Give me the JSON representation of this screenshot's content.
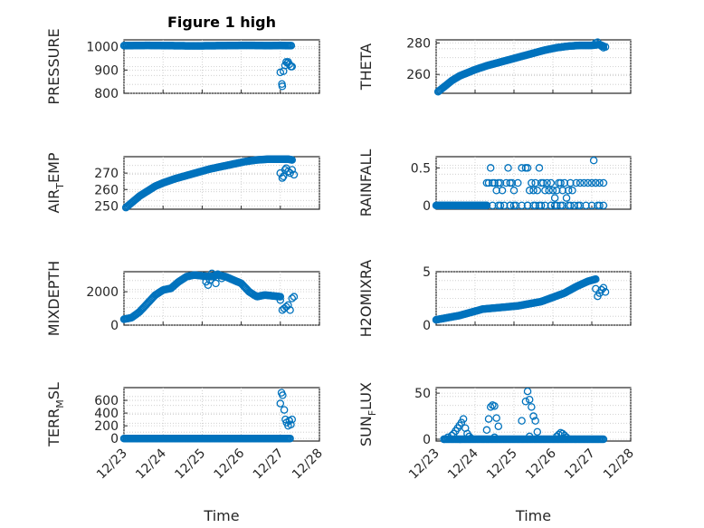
{
  "chart_data": [
    {
      "id": "pressure",
      "type": "scatter",
      "title": "Figure 1 high",
      "ylabel_main": "PRESSURE",
      "ylabel_sub": "",
      "ylim": [
        800,
        1030
      ],
      "yticks": [
        800,
        900,
        1000
      ],
      "xlim": [
        0,
        5
      ],
      "xlabel": "",
      "color": "#0072BD",
      "segments": [
        {
          "x": [
            0,
            0.6,
            1.2,
            1.8,
            2.4,
            3.0,
            3.3,
            3.7,
            4.0,
            4.2,
            4.28
          ],
          "y": [
            1005,
            1006,
            1005,
            1004,
            1005,
            1006,
            1006,
            1005,
            1006,
            1005,
            1005
          ],
          "n": 150
        }
      ],
      "points": {
        "x": [
          4.0,
          4.04,
          4.05,
          4.08,
          4.12,
          4.15,
          4.18,
          4.2,
          4.23,
          4.27,
          4.3
        ],
        "y": [
          890,
          840,
          830,
          895,
          920,
          935,
          930,
          935,
          925,
          915,
          915
        ]
      }
    },
    {
      "id": "theta",
      "type": "scatter",
      "title": "",
      "ylabel_main": "THETA",
      "ylabel_sub": "",
      "ylim": [
        248,
        282
      ],
      "yticks": [
        260,
        280
      ],
      "xlim": [
        0,
        5
      ],
      "xlabel": "",
      "color": "#0072BD",
      "segments": [
        {
          "x": [
            0.05,
            0.2,
            0.4,
            0.6,
            0.8,
            1.0,
            1.3,
            1.6,
            1.9,
            2.2,
            2.5,
            2.8,
            3.1,
            3.4,
            3.7,
            4.0,
            4.2,
            4.3
          ],
          "y": [
            249,
            252,
            256,
            259,
            261,
            263,
            265.5,
            267.5,
            269.5,
            271.5,
            273.5,
            275.5,
            277,
            278,
            278.5,
            278.5,
            279,
            278
          ],
          "n": 170
        }
      ],
      "points": {
        "x": [
          4.1,
          4.15,
          4.2,
          4.25,
          4.3,
          4.35
        ],
        "y": [
          280,
          280.5,
          279,
          278,
          277,
          277.5
        ]
      }
    },
    {
      "id": "airtemp",
      "type": "scatter",
      "title": "",
      "ylabel_main": "AIR",
      "ylabel_sub": "T",
      "ylabel_tail": "EMP",
      "ylim": [
        248,
        280
      ],
      "yticks": [
        250,
        260,
        270
      ],
      "xlim": [
        0,
        5
      ],
      "xlabel": "",
      "color": "#0072BD",
      "segments": [
        {
          "x": [
            0.05,
            0.2,
            0.4,
            0.6,
            0.8,
            1.0,
            1.3,
            1.6,
            1.9,
            2.2,
            2.5,
            2.8,
            3.1,
            3.4,
            3.7,
            4.0,
            4.2,
            4.3
          ],
          "y": [
            249,
            252,
            256,
            259,
            262,
            264,
            266.5,
            268.5,
            270.5,
            272.5,
            274,
            275.5,
            277,
            278,
            278.5,
            278.5,
            278.5,
            278
          ],
          "n": 170
        }
      ],
      "points": {
        "x": [
          4.0,
          4.05,
          4.08,
          4.12,
          4.15,
          4.2,
          4.25,
          4.3,
          4.35
        ],
        "y": [
          270,
          267,
          268,
          272,
          273,
          271,
          270,
          272,
          269
        ]
      }
    },
    {
      "id": "rainfall",
      "type": "scatter",
      "title": "",
      "ylabel_main": "RAINFALL",
      "ylabel_sub": "",
      "ylim": [
        -0.05,
        0.65
      ],
      "yticks": [
        0,
        0.5
      ],
      "xlim": [
        0,
        5
      ],
      "xlabel": "",
      "color": "#0072BD",
      "segments": [
        {
          "x": [
            0,
            1.3
          ],
          "y": [
            0,
            0
          ],
          "n": 60
        },
        {
          "x": [
            1.3,
            4.3
          ],
          "y": [
            0,
            0
          ],
          "n": 20
        }
      ],
      "points": {
        "x": [
          1.3,
          1.35,
          1.4,
          1.45,
          1.5,
          1.55,
          1.6,
          1.65,
          1.7,
          1.8,
          1.85,
          1.9,
          1.95,
          2.0,
          2.1,
          2.2,
          2.3,
          2.35,
          2.4,
          2.45,
          2.5,
          2.55,
          2.6,
          2.65,
          2.7,
          2.75,
          2.8,
          2.85,
          2.9,
          2.95,
          3.0,
          3.05,
          3.1,
          3.15,
          3.2,
          3.25,
          3.3,
          3.35,
          3.4,
          3.45,
          3.5,
          3.6,
          3.7,
          3.8,
          3.9,
          4.0,
          4.1,
          4.2,
          4.3,
          1.65,
          2.0,
          2.35,
          2.7,
          2.95,
          3.2,
          3.45,
          1.9,
          2.55,
          3.05,
          3.65,
          4.05,
          4.1,
          4.2
        ],
        "y": [
          0.3,
          0.3,
          0.5,
          0.3,
          0.3,
          0.2,
          0.3,
          0.3,
          0.2,
          0.3,
          0.5,
          0.3,
          0.3,
          0.2,
          0.3,
          0.5,
          0.5,
          0.5,
          0.2,
          0.3,
          0.2,
          0.3,
          0.2,
          0.5,
          0.3,
          0.3,
          0.2,
          0.3,
          0.2,
          0.3,
          0.2,
          0.1,
          0.2,
          0.3,
          0.3,
          0.2,
          0.3,
          0.1,
          0.2,
          0.3,
          0.2,
          0.3,
          0.3,
          0.3,
          0.3,
          0.3,
          0.3,
          0.3,
          0.3,
          0,
          0,
          0,
          0,
          0,
          0,
          0,
          0,
          0,
          0,
          0,
          0.6,
          0.3,
          0
        ]
      }
    },
    {
      "id": "mixdepth",
      "type": "scatter",
      "title": "",
      "ylabel_main": "MIXDEPTH",
      "ylabel_sub": "",
      "ylim": [
        0,
        3200
      ],
      "yticks": [
        0,
        2000
      ],
      "xlim": [
        0,
        5
      ],
      "xlabel": "",
      "color": "#0072BD",
      "segments": [
        {
          "x": [
            0,
            0.2,
            0.4,
            0.6,
            0.8,
            1.0,
            1.2,
            1.4,
            1.6,
            1.8,
            2.0,
            2.2,
            2.4,
            2.6,
            2.8,
            3.0,
            3.2,
            3.4,
            3.6,
            3.8,
            4.0
          ],
          "y": [
            350,
            450,
            800,
            1300,
            1800,
            2100,
            2200,
            2600,
            2900,
            3000,
            2950,
            2900,
            3000,
            2900,
            2700,
            2500,
            2000,
            1700,
            1800,
            1750,
            1700
          ],
          "n": 150
        }
      ],
      "points": {
        "x": [
          2.1,
          2.15,
          2.2,
          2.25,
          2.3,
          2.35,
          2.4,
          2.5,
          4.0,
          4.05,
          4.1,
          4.15,
          4.2,
          4.25,
          4.3,
          4.35
        ],
        "y": [
          2600,
          2400,
          2700,
          3100,
          2900,
          2500,
          3050,
          2800,
          1500,
          900,
          1000,
          1100,
          1200,
          900,
          1600,
          1700
        ]
      }
    },
    {
      "id": "h2omixra",
      "type": "scatter",
      "title": "",
      "ylabel_main": "H2OMIXRA",
      "ylabel_sub": "",
      "ylim": [
        0,
        5
      ],
      "yticks": [
        0,
        5
      ],
      "xlim": [
        0,
        5
      ],
      "xlabel": "",
      "color": "#0072BD",
      "segments": [
        {
          "x": [
            0,
            0.3,
            0.6,
            0.9,
            1.2,
            1.5,
            1.8,
            2.1,
            2.4,
            2.7,
            3.0,
            3.3,
            3.6,
            3.9,
            4.1
          ],
          "y": [
            0.5,
            0.7,
            0.9,
            1.2,
            1.5,
            1.6,
            1.7,
            1.8,
            2.0,
            2.2,
            2.6,
            3.0,
            3.6,
            4.1,
            4.3
          ],
          "n": 160
        }
      ],
      "points": {
        "x": [
          4.1,
          4.15,
          4.2,
          4.25,
          4.3,
          4.35
        ],
        "y": [
          3.4,
          2.7,
          3.0,
          3.3,
          3.5,
          3.1
        ]
      }
    },
    {
      "id": "terrmsl",
      "type": "scatter",
      "title": "",
      "ylabel_main": "TERR",
      "ylabel_sub": "M",
      "ylabel_tail": "SL",
      "ylim": [
        -40,
        800
      ],
      "yticks": [
        0,
        200,
        400,
        600
      ],
      "xlim": [
        0,
        5
      ],
      "xlabel": "Time",
      "xticks": [
        0,
        1,
        2,
        3,
        4,
        5
      ],
      "xticklabels": [
        "12/23",
        "12/24",
        "12/25",
        "12/26",
        "12/27",
        "12/28"
      ],
      "color": "#0072BD",
      "segments": [
        {
          "x": [
            0,
            4.25
          ],
          "y": [
            0,
            0
          ],
          "n": 150
        }
      ],
      "points": {
        "x": [
          4.0,
          4.03,
          4.06,
          4.1,
          4.13,
          4.16,
          4.2,
          4.23,
          4.27,
          4.3
        ],
        "y": [
          550,
          720,
          680,
          450,
          300,
          250,
          200,
          280,
          220,
          300
        ]
      }
    },
    {
      "id": "sunflux",
      "type": "scatter",
      "title": "",
      "ylabel_main": "SUN",
      "ylabel_sub": "F",
      "ylabel_tail": "LUX",
      "ylim": [
        -2,
        56
      ],
      "yticks": [
        0,
        50
      ],
      "xlim": [
        0,
        5
      ],
      "xlabel": "Time",
      "xticks": [
        0,
        1,
        2,
        3,
        4,
        5
      ],
      "xticklabels": [
        "12/23",
        "12/24",
        "12/25",
        "12/26",
        "12/27",
        "12/28"
      ],
      "color": "#0072BD",
      "segments": [
        {
          "x": [
            0.2,
            4.3
          ],
          "y": [
            0,
            0
          ],
          "n": 140
        }
      ],
      "points": {
        "x": [
          0.2,
          0.3,
          0.4,
          0.45,
          0.5,
          0.55,
          0.6,
          0.65,
          0.7,
          0.75,
          0.8,
          0.85,
          0.9,
          1.3,
          1.35,
          1.4,
          1.45,
          1.5,
          1.55,
          1.6,
          1.5,
          2.2,
          2.3,
          2.35,
          2.4,
          2.45,
          2.5,
          2.55,
          2.6,
          2.4,
          3.1,
          3.15,
          3.2,
          3.25,
          3.3,
          3.35
        ],
        "y": [
          0,
          2,
          4,
          6,
          9,
          12,
          15,
          18,
          22,
          12,
          6,
          3,
          1,
          10,
          22,
          35,
          37,
          36,
          23,
          14,
          2,
          20,
          41,
          52,
          43,
          35,
          25,
          20,
          8,
          3,
          3,
          5,
          7,
          6,
          4,
          2
        ]
      }
    }
  ]
}
